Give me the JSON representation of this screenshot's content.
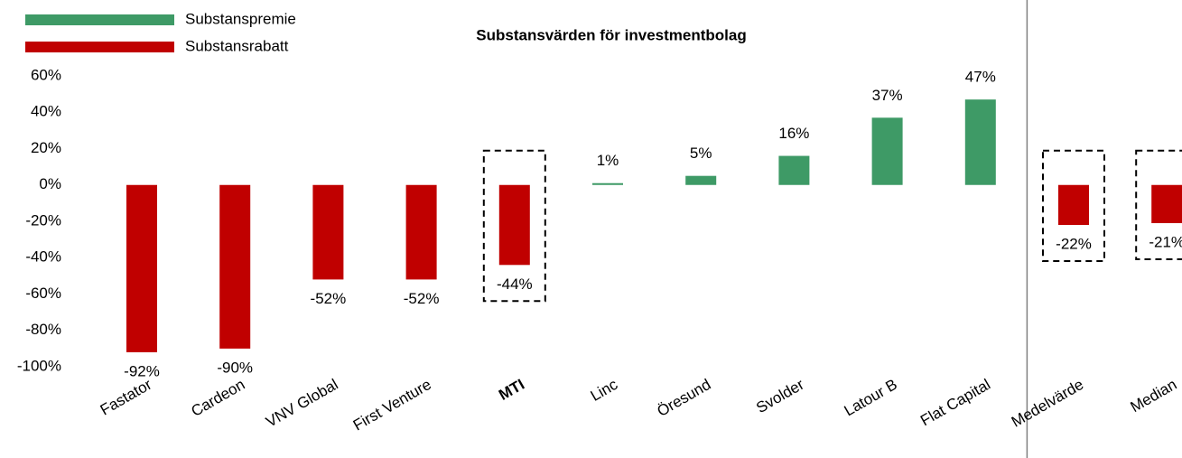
{
  "chart_data": {
    "type": "bar",
    "title": "Substansvärden för investmentbolag",
    "categories": [
      "Fastator",
      "Cardeon",
      "VNV Global",
      "First Venture",
      "MTI",
      "Linc",
      "Öresund",
      "Svolder",
      "Latour B",
      "Flat Capital",
      "Medelvärde",
      "Median"
    ],
    "series": [
      {
        "name": "Substanspremie",
        "color": "#3e9a66",
        "values": [
          null,
          null,
          null,
          null,
          null,
          1,
          5,
          16,
          37,
          47,
          null,
          null
        ],
        "value_labels": [
          null,
          null,
          null,
          null,
          null,
          "1%",
          "5%",
          "16%",
          "37%",
          "47%",
          null,
          null
        ]
      },
      {
        "name": "Substansrabatt",
        "color": "#c00000",
        "values": [
          -92,
          -90,
          -52,
          -52,
          -44,
          null,
          null,
          null,
          null,
          null,
          -22,
          -21
        ],
        "value_labels": [
          "-92%",
          "-90%",
          "-52%",
          "-52%",
          "-44%",
          null,
          null,
          null,
          null,
          null,
          "-22%",
          "-21%"
        ]
      }
    ],
    "ylim": [
      -100,
      60
    ],
    "yticks": [
      {
        "value": -100,
        "label": "-100%"
      },
      {
        "value": -80,
        "label": "-80%"
      },
      {
        "value": -60,
        "label": "-60%"
      },
      {
        "value": -40,
        "label": "-40%"
      },
      {
        "value": -20,
        "label": "-20%"
      },
      {
        "value": 0,
        "label": "0%"
      },
      {
        "value": 20,
        "label": "20%"
      },
      {
        "value": 40,
        "label": "40%"
      },
      {
        "value": 60,
        "label": "60%"
      }
    ],
    "highlight": [
      4,
      10,
      11
    ],
    "bold_categories": [
      4
    ],
    "divider_after": 9,
    "legend": "top-left",
    "grid": false
  }
}
